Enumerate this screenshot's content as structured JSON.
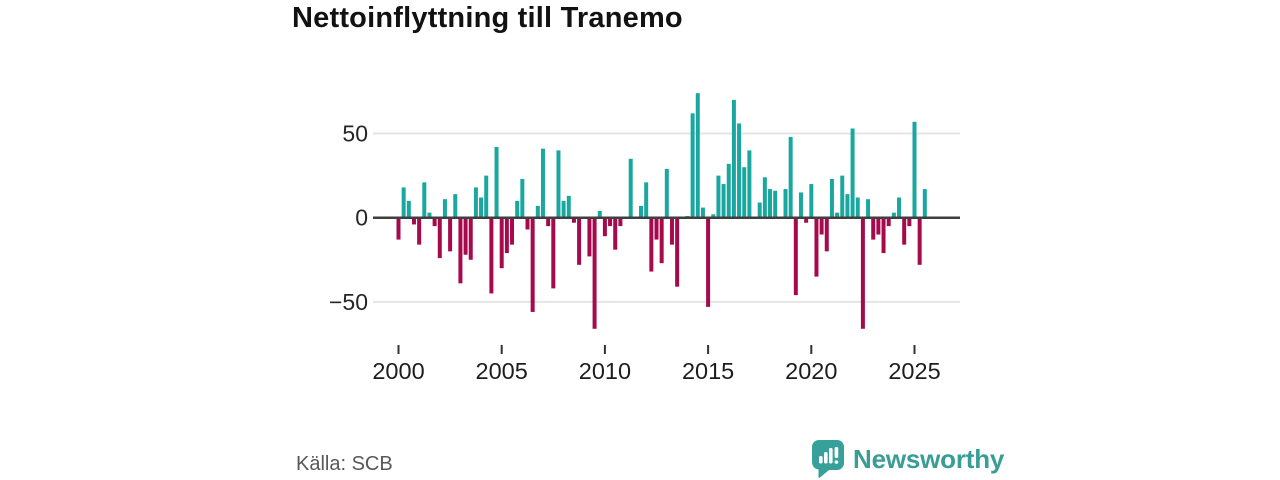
{
  "title": "Nettoinflyttning till Tranemo",
  "source": "Källa: SCB",
  "branding": {
    "name": "Newsworthy",
    "icon": "speech-bubble-bar-chart-icon"
  },
  "colors": {
    "positive": "#1AA7A0",
    "negative": "#A60A4C",
    "grid": "#E4E4E4",
    "zero_line": "#3F3F3F",
    "tick": "#333333",
    "label_text": "#262626",
    "muted_text": "#58585a",
    "brand_teal": "#389d94",
    "background": "#FFFFFF"
  },
  "chart_data": {
    "type": "bar",
    "title": "Nettoinflyttning till Tranemo",
    "frequency": "quarterly",
    "start": "2000-Q1",
    "end": "2025-Q3",
    "xlabel": "",
    "ylabel": "",
    "x_tick_years": [
      2000,
      2005,
      2010,
      2015,
      2020,
      2025
    ],
    "y_ticks": [
      {
        "value": 50,
        "label": "50"
      },
      {
        "value": 0,
        "label": "0"
      },
      {
        "value": -50,
        "label": "−50"
      }
    ],
    "ylim": [
      -75,
      85
    ],
    "grid": "horizontal-at-plus-minus-50",
    "legend": "none",
    "values": [
      -13,
      18,
      10,
      -4,
      -16,
      21,
      3,
      -5,
      -24,
      11,
      -20,
      14,
      -39,
      -22,
      -25,
      18,
      12,
      25,
      -45,
      42,
      -30,
      -21,
      -16,
      10,
      23,
      -7,
      -56,
      7,
      41,
      -5,
      -42,
      40,
      10,
      13,
      -3,
      -28,
      0,
      -23,
      -66,
      4,
      -11,
      -5,
      -19,
      -5,
      0,
      35,
      0,
      7,
      21,
      -32,
      -13,
      -27,
      29,
      -16,
      -41,
      0,
      1,
      62,
      74,
      6,
      -53,
      2,
      25,
      20,
      32,
      70,
      56,
      30,
      40,
      0,
      9,
      24,
      17,
      16,
      0,
      17,
      48,
      -46,
      15,
      -3,
      20,
      -35,
      -10,
      -20,
      23,
      3,
      25,
      14,
      53,
      12,
      -66,
      11,
      -13,
      -10,
      -21,
      -5,
      3,
      12,
      -16,
      -5,
      57,
      -28,
      17
    ]
  }
}
